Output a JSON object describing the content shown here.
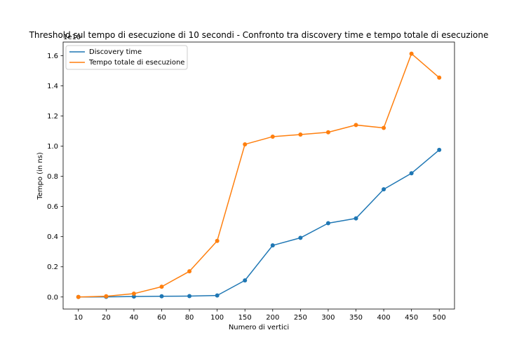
{
  "chart_data": {
    "type": "line",
    "title": "Threshold sul tempo di esecuzione di 10 secondi - Confronto tra discovery time e tempo totale di esecuzione",
    "xlabel": "Numero di vertici",
    "ylabel": "Tempo (in ns)",
    "y_offset_label": "1e10",
    "categories": [
      "10",
      "20",
      "40",
      "60",
      "80",
      "100",
      "150",
      "200",
      "250",
      "300",
      "350",
      "400",
      "450",
      "500"
    ],
    "y_ticks": [
      "0.0",
      "0.2",
      "0.4",
      "0.6",
      "0.8",
      "1.0",
      "1.2",
      "1.4",
      "1.6"
    ],
    "ylim": [
      -0.08,
      1.69
    ],
    "legend_position": "upper-left",
    "grid": false,
    "series": [
      {
        "name": "Discovery time",
        "color": "#1f77b4",
        "values": [
          0.0,
          0.001,
          0.003,
          0.005,
          0.006,
          0.01,
          0.11,
          0.342,
          0.392,
          0.489,
          0.521,
          0.714,
          0.82,
          0.975
        ]
      },
      {
        "name": "Tempo totale di esecuzione",
        "color": "#ff7f0e",
        "values": [
          0.0,
          0.005,
          0.022,
          0.068,
          0.17,
          0.372,
          1.012,
          1.063,
          1.077,
          1.092,
          1.14,
          1.121,
          1.613,
          1.454
        ]
      }
    ]
  }
}
